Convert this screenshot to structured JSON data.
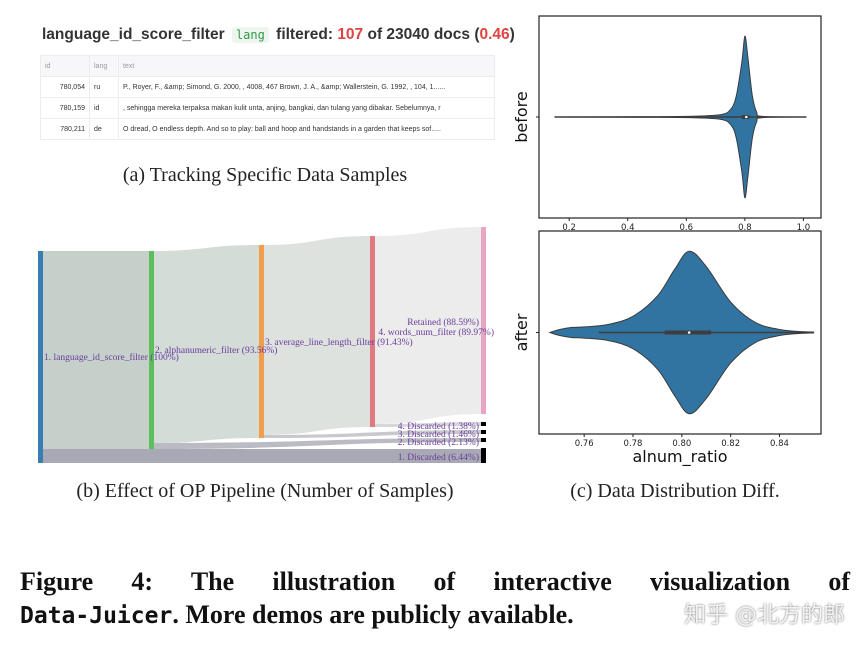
{
  "panel_a": {
    "filter_name": "language_id_score_filter",
    "tag": "lang",
    "filtered_label": "filtered:",
    "filtered_count": "107",
    "of_label": "of 23040 docs (",
    "ratio": "0.46",
    "close_paren": ")",
    "columns": [
      "id",
      "lang",
      "text"
    ],
    "rows": [
      {
        "id": "780,054",
        "lang": "ru",
        "text": "P., Royer, F., &amp; Simond, G. 2000, , 4008, 467 Brown, J. A., &amp; Wallerstein, G. 1992, , 104, 1......"
      },
      {
        "id": "780,159",
        "lang": "id",
        "text": ", sehingga mereka terpaksa makan kulit unta, anjing, bangkai, dan tulang yang dibakar. Sebelumnya, r"
      },
      {
        "id": "780,211",
        "lang": "de",
        "text": "O dread,  O endless depth.  And so to play: ball and hoop and handstands  in a garden that keeps sof....."
      }
    ],
    "caption": "(a)  Tracking Specific Data Samples"
  },
  "panel_b": {
    "nodes": [
      {
        "label": "1. language_id_score_filter (100%)",
        "value": 100,
        "color": "#3a7db3"
      },
      {
        "label": "2. alphanumeric_filter (93.56%)",
        "value": 93.56,
        "color": "#5cbf5c"
      },
      {
        "label": "3. average_line_length_filter (91.43%)",
        "value": 91.43,
        "color": "#f39c4a"
      },
      {
        "label": "4. words_num_filter (89.97%)",
        "value": 89.97,
        "color": "#e07a80"
      },
      {
        "label": "Retained (88.59%)",
        "value": 88.59,
        "color": "#e8a6c4"
      }
    ],
    "discarded": [
      {
        "label": "4. Discarded (1.38%)",
        "value": 1.38
      },
      {
        "label": "3. Discarded (1.46%)",
        "value": 1.46
      },
      {
        "label": "2. Discarded (2.13%)",
        "value": 2.13
      },
      {
        "label": "1. Discarded (6.44%)",
        "value": 6.44
      }
    ],
    "caption": "(b)  Effect of OP Pipeline (Number of Samples)"
  },
  "panel_c": {
    "caption": "(c)  Data Distribution Diff.",
    "fill": "#3274a1",
    "chart_data": [
      {
        "type": "violin",
        "ylabel": "before",
        "xlabel": "",
        "xlim": [
          0.097,
          1.06
        ],
        "ticks": [
          "0.2",
          "0.4",
          "0.6",
          "0.8",
          "1.0"
        ],
        "tick_values": [
          0.2,
          0.4,
          0.6,
          0.8,
          1.0
        ],
        "density": [
          [
            0.15,
            0
          ],
          [
            0.5,
            0.003
          ],
          [
            0.65,
            0.01
          ],
          [
            0.72,
            0.025
          ],
          [
            0.75,
            0.07
          ],
          [
            0.77,
            0.2
          ],
          [
            0.79,
            0.55
          ],
          [
            0.8,
            0.8
          ],
          [
            0.81,
            0.6
          ],
          [
            0.825,
            0.22
          ],
          [
            0.84,
            0.05
          ],
          [
            0.86,
            0.006
          ],
          [
            1.01,
            0
          ]
        ],
        "whisker": [
          0.15,
          1.01
        ],
        "q1": 0.79,
        "q3": 0.815,
        "median": 0.805
      },
      {
        "type": "violin",
        "ylabel": "after",
        "xlabel": "alnum_ratio",
        "xlim": [
          0.7415,
          0.857
        ],
        "ticks": [
          "0.76",
          "0.78",
          "0.80",
          "0.82",
          "0.84"
        ],
        "tick_values": [
          0.76,
          0.78,
          0.8,
          0.82,
          0.84
        ],
        "density": [
          [
            0.746,
            0
          ],
          [
            0.75,
            0.03
          ],
          [
            0.755,
            0.05
          ],
          [
            0.76,
            0.055
          ],
          [
            0.77,
            0.08
          ],
          [
            0.78,
            0.16
          ],
          [
            0.79,
            0.36
          ],
          [
            0.797,
            0.62
          ],
          [
            0.803,
            0.8
          ],
          [
            0.81,
            0.65
          ],
          [
            0.82,
            0.3
          ],
          [
            0.83,
            0.1
          ],
          [
            0.84,
            0.03
          ],
          [
            0.848,
            0.01
          ],
          [
            0.854,
            0.004
          ]
        ],
        "whisker": [
          0.766,
          0.854
        ],
        "q1": 0.793,
        "q3": 0.812,
        "median": 0.803
      }
    ]
  },
  "figure_caption": {
    "prefix": "Figure 4: The illustration of interactive visualization of",
    "code": "Data-Juicer",
    "suffix": ". More demos are publicly available."
  },
  "watermark": "知乎 @北方的郎"
}
